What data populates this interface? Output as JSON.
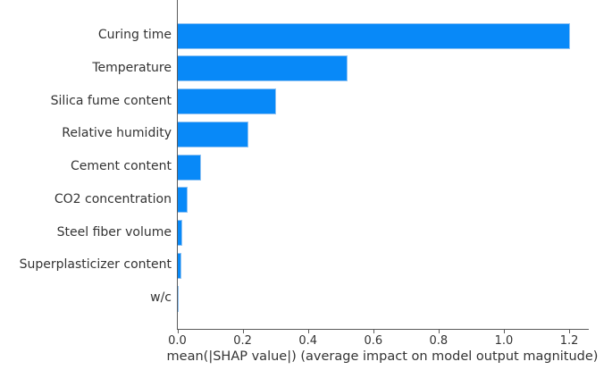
{
  "chart_data": {
    "type": "bar",
    "orientation": "horizontal",
    "title": "",
    "categories": [
      "Curing time",
      "Temperature",
      "Silica fume content",
      "Relative humidity",
      "Cement content",
      "CO2 concentration",
      "Steel fiber volume",
      "Superplasticizer content",
      "w/c"
    ],
    "values": [
      1.2,
      0.52,
      0.3,
      0.215,
      0.07,
      0.03,
      0.015,
      0.012,
      0.002
    ],
    "xlabel": "mean(|SHAP value|) (average impact on model output magnitude)",
    "ylabel": "",
    "xlim": [
      0,
      1.26
    ],
    "xticks": [
      0.0,
      0.2,
      0.4,
      0.6,
      0.8,
      1.0,
      1.2
    ],
    "xtick_labels": [
      "0.0",
      "0.2",
      "0.4",
      "0.6",
      "0.8",
      "1.0",
      "1.2"
    ],
    "grid": false,
    "legend": false,
    "bar_color": "#0889f8",
    "axis_color": "#5a5a5a",
    "text_color": "#333333",
    "background_color": "#ffffff"
  }
}
